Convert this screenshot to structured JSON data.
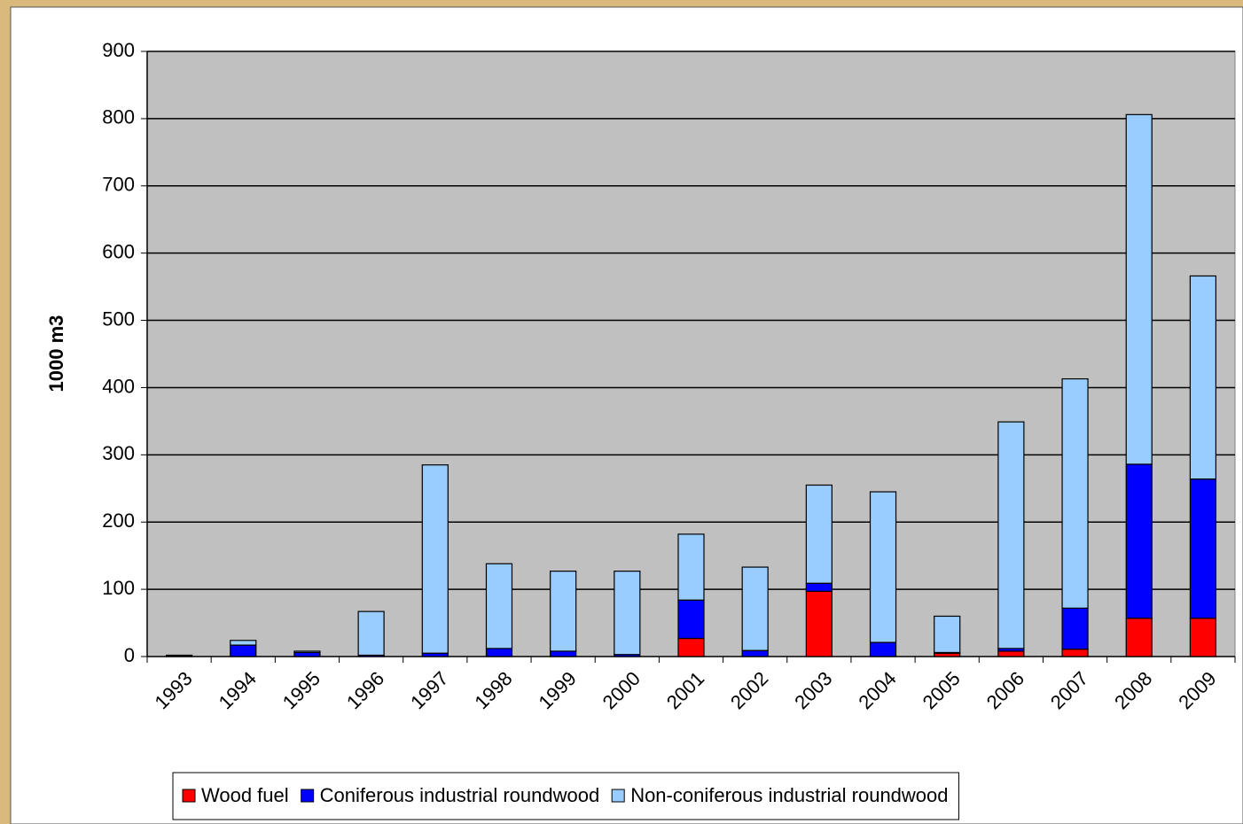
{
  "chart_data": {
    "type": "bar",
    "stacked": true,
    "y_label": "1000 m3",
    "categories": [
      "1993",
      "1994",
      "1995",
      "1996",
      "1997",
      "1998",
      "1999",
      "2000",
      "2001",
      "2002",
      "2003",
      "2004",
      "2005",
      "2006",
      "2007",
      "2008",
      "2009"
    ],
    "series": [
      {
        "name": "Wood fuel",
        "color": "#ff0000",
        "values": [
          0,
          0,
          0,
          0,
          0,
          0,
          0,
          0,
          27,
          0,
          97,
          0,
          5,
          8,
          11,
          57,
          57
        ]
      },
      {
        "name": "Coniferous industrial roundwood",
        "color": "#0000ff",
        "values": [
          1,
          17,
          6,
          2,
          5,
          12,
          8,
          3,
          57,
          9,
          12,
          21,
          1,
          4,
          61,
          229,
          207
        ]
      },
      {
        "name": "Non-coniferous industrial roundwood",
        "color": "#99ccff",
        "values": [
          1,
          7,
          2,
          65,
          280,
          126,
          119,
          124,
          98,
          124,
          146,
          224,
          54,
          337,
          341,
          520,
          302
        ]
      }
    ],
    "ylim": [
      0,
      900
    ],
    "yticks": [
      0,
      100,
      200,
      300,
      400,
      500,
      600,
      700,
      800,
      900
    ],
    "grid": true,
    "legend": "bottom"
  }
}
